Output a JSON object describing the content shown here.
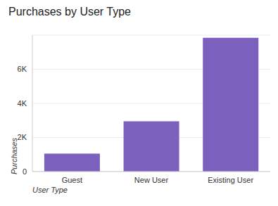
{
  "chart_data": {
    "type": "bar",
    "title": "Purchases by User Type",
    "x_label": "User Type",
    "y_label": "Purchases",
    "categories": [
      "Guest",
      "New User",
      "Existing User"
    ],
    "values": [
      1050,
      2950,
      7850
    ],
    "color": "#7b61bd",
    "ylim": [
      0,
      8000
    ],
    "yticks": [
      0,
      {
        "value": 2000,
        "label": "2K"
      },
      {
        "value": 4000,
        "label": "4K"
      },
      {
        "value": 6000,
        "label": "6K"
      }
    ],
    "grid": true
  }
}
